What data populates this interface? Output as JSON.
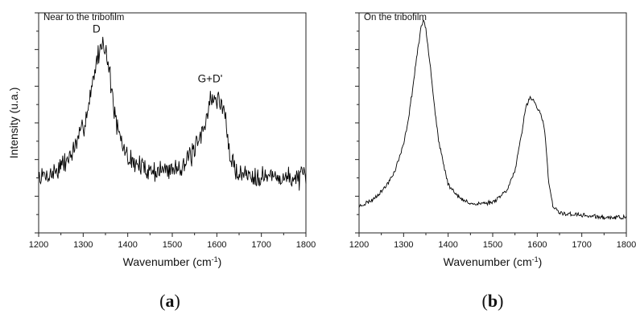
{
  "chart_data": [
    {
      "type": "line",
      "title": "Near to the tribofilm",
      "xlabel": "Wavenumber (cm",
      "xlabel_sup": "-1",
      "xlabel_suffix": ")",
      "ylabel": "Intensity (u.a.)",
      "xlim": [
        1200,
        1800
      ],
      "ylim": [
        0,
        1
      ],
      "x_ticks": [
        "1200",
        "1300",
        "1400",
        "1500",
        "1600",
        "1700",
        "1800"
      ],
      "y_tick_labels": false,
      "annotations": [
        {
          "text": "D",
          "x": 1330,
          "y": 0.91
        },
        {
          "text": "G+D'",
          "x": 1585,
          "y": 0.685
        }
      ],
      "series": [
        {
          "x": [
            1200,
            1230,
            1260,
            1280,
            1300,
            1310,
            1320,
            1330,
            1340,
            1345,
            1350,
            1360,
            1370,
            1380,
            1400,
            1430,
            1460,
            1500,
            1530,
            1550,
            1565,
            1575,
            1585,
            1595,
            1605,
            1615,
            1620,
            1625,
            1635,
            1650,
            1700,
            1750,
            1800
          ],
          "y": [
            0.25,
            0.27,
            0.32,
            0.38,
            0.48,
            0.56,
            0.67,
            0.78,
            0.85,
            0.87,
            0.84,
            0.72,
            0.55,
            0.44,
            0.34,
            0.3,
            0.28,
            0.29,
            0.32,
            0.37,
            0.44,
            0.52,
            0.6,
            0.61,
            0.6,
            0.57,
            0.52,
            0.4,
            0.31,
            0.27,
            0.26,
            0.25,
            0.25
          ],
          "noise": 0.04
        }
      ]
    },
    {
      "type": "line",
      "title": "On the tribofilm",
      "xlabel": "Wavenumber (cm",
      "xlabel_sup": "-1",
      "xlabel_suffix": ")",
      "ylabel": "",
      "xlim": [
        1200,
        1800
      ],
      "ylim": [
        0,
        1
      ],
      "x_ticks": [
        "1200",
        "1300",
        "1400",
        "1500",
        "1600",
        "1700",
        "1800"
      ],
      "y_tick_labels": false,
      "series": [
        {
          "x": [
            1200,
            1230,
            1260,
            1280,
            1300,
            1310,
            1320,
            1330,
            1340,
            1345,
            1350,
            1360,
            1370,
            1380,
            1400,
            1430,
            1460,
            1500,
            1530,
            1550,
            1565,
            1575,
            1585,
            1595,
            1605,
            1615,
            1620,
            1625,
            1635,
            1650,
            1700,
            1750,
            1800
          ],
          "y": [
            0.12,
            0.15,
            0.21,
            0.28,
            0.4,
            0.51,
            0.65,
            0.81,
            0.94,
            0.97,
            0.93,
            0.76,
            0.56,
            0.4,
            0.22,
            0.15,
            0.13,
            0.14,
            0.19,
            0.28,
            0.45,
            0.58,
            0.62,
            0.59,
            0.55,
            0.49,
            0.39,
            0.24,
            0.12,
            0.09,
            0.08,
            0.07,
            0.07
          ],
          "noise": 0.008
        }
      ]
    }
  ],
  "captions": {
    "a_open": "(",
    "a_letter": "a",
    "a_close": ")",
    "b_open": "(",
    "b_letter": "b",
    "b_close": ")"
  }
}
